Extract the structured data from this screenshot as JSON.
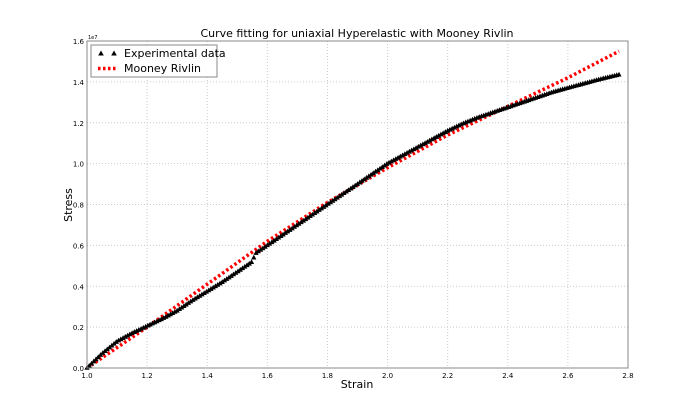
{
  "chart_data": {
    "type": "scatter",
    "title": "Curve fitting for uniaxial Hyperelastic with Mooney Rivlin",
    "xlabel": "Strain",
    "ylabel": "Stress",
    "y_offset_label": "1e7",
    "xlim": [
      1.0,
      2.8
    ],
    "ylim": [
      0.0,
      1.6
    ],
    "xticks": [
      "1.0",
      "1.2",
      "1.4",
      "1.6",
      "1.8",
      "2.0",
      "2.2",
      "2.4",
      "2.6",
      "2.8"
    ],
    "yticks": [
      "0.0",
      "0.2",
      "0.4",
      "0.6",
      "0.8",
      "1.0",
      "1.2",
      "1.4",
      "1.6"
    ],
    "grid": true,
    "legend_position": "top-left",
    "y_unit_scale": "1e7",
    "series": [
      {
        "name": "Experimental data",
        "marker": "triangle",
        "color": "#000000",
        "x": [
          1.0,
          1.05,
          1.1,
          1.15,
          1.2,
          1.25,
          1.3,
          1.35,
          1.4,
          1.45,
          1.5,
          1.55,
          1.56,
          1.6,
          1.65,
          1.7,
          1.75,
          1.8,
          1.85,
          1.9,
          1.95,
          2.0,
          2.05,
          2.1,
          2.15,
          2.2,
          2.25,
          2.3,
          2.35,
          2.4,
          2.45,
          2.5,
          2.55,
          2.6,
          2.65,
          2.7,
          2.77
        ],
        "y": [
          0,
          0.07,
          0.13,
          0.17,
          0.205,
          0.24,
          0.28,
          0.33,
          0.375,
          0.42,
          0.47,
          0.52,
          0.56,
          0.6,
          0.65,
          0.7,
          0.75,
          0.8,
          0.85,
          0.9,
          0.95,
          1.0,
          1.04,
          1.08,
          1.12,
          1.16,
          1.195,
          1.225,
          1.25,
          1.275,
          1.3,
          1.325,
          1.35,
          1.37,
          1.39,
          1.41,
          1.435
        ]
      },
      {
        "name": "Mooney Rivlin",
        "marker": "dotted-line",
        "color": "#ff0000",
        "x": [
          1.0,
          1.2,
          1.4,
          1.6,
          1.8,
          2.0,
          2.2,
          2.4,
          2.6,
          2.77
        ],
        "y": [
          0,
          0.2,
          0.41,
          0.62,
          0.81,
          0.98,
          1.14,
          1.28,
          1.42,
          1.55
        ]
      }
    ]
  }
}
